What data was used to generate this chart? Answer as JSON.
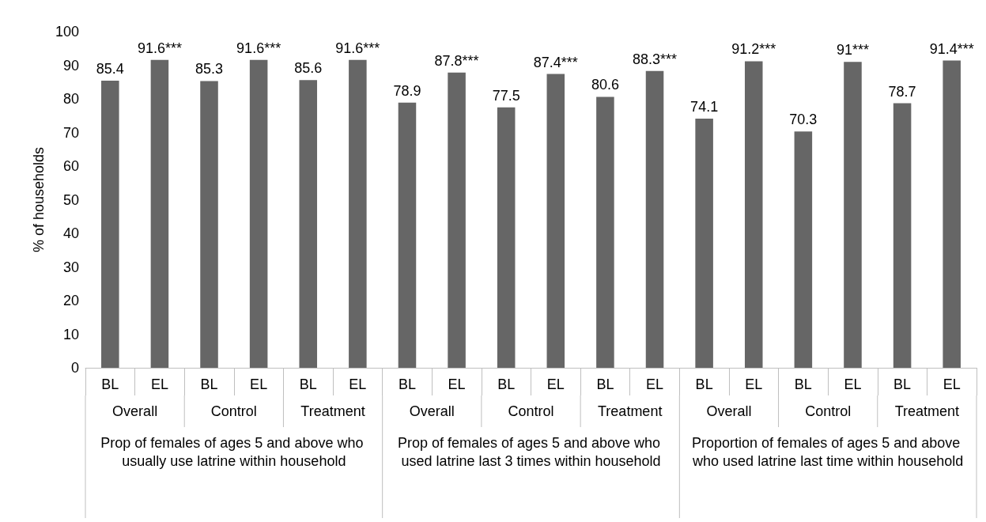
{
  "chart_data": {
    "type": "bar",
    "ylabel": "% of households",
    "categories": [
      "BL",
      "EL",
      "BL",
      "EL",
      "BL",
      "EL",
      "BL",
      "EL",
      "BL",
      "EL",
      "BL",
      "EL",
      "BL",
      "EL",
      "BL",
      "EL",
      "BL",
      "EL"
    ],
    "values": [
      85.4,
      91.6,
      85.3,
      91.6,
      85.6,
      91.6,
      78.9,
      87.8,
      77.5,
      87.4,
      80.6,
      88.3,
      74.1,
      91.2,
      70.3,
      91,
      78.7,
      91.4
    ],
    "value_labels": [
      "85.4",
      "91.6***",
      "85.3",
      "91.6***",
      "85.6",
      "91.6***",
      "78.9",
      "87.8***",
      "77.5",
      "87.4***",
      "80.6",
      "88.3***",
      "74.1",
      "91.2***",
      "70.3",
      "91***",
      "78.7",
      "91.4***"
    ],
    "color": "#666666",
    "ylim": [
      0,
      100
    ],
    "yticks": [
      0,
      10,
      20,
      30,
      40,
      50,
      60,
      70,
      80,
      90,
      100
    ],
    "annotations": [
      "Overall",
      "Control",
      "Treatment",
      "Overall",
      "Control",
      "Treatment",
      "Overall",
      "Control",
      "Treatment",
      "Prop of females of ages 5 and above who usually use latrine within household",
      "Prop of females of ages 5 and above who used latrine last 3 times within household",
      "Proportion of females of ages 5 and above who used latrine last time within household"
    ]
  }
}
